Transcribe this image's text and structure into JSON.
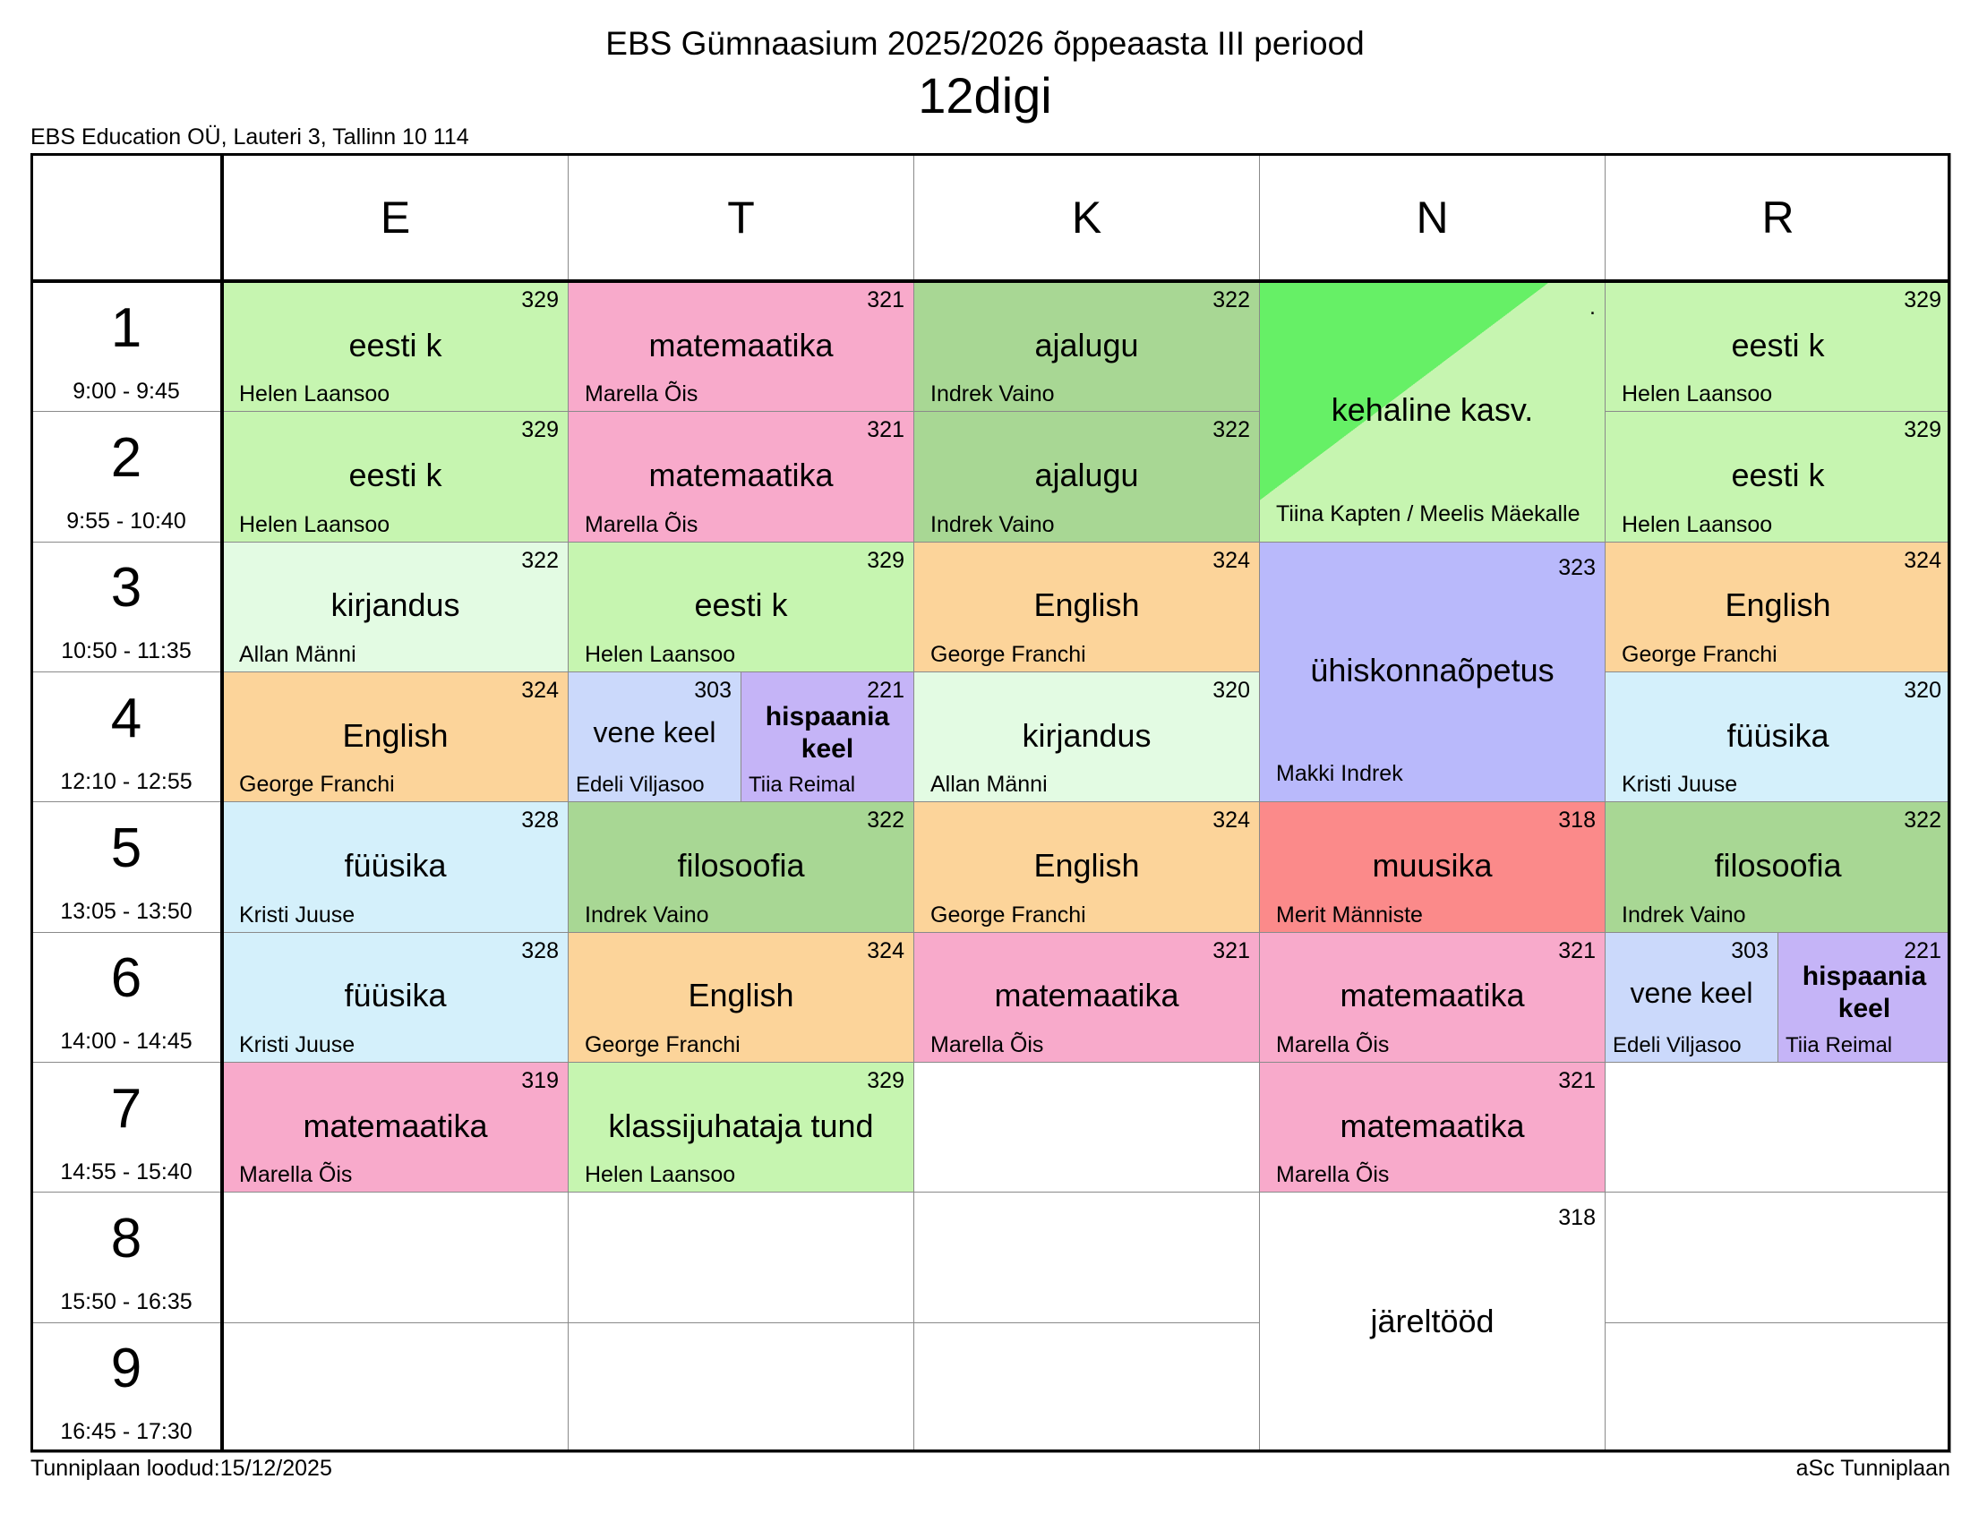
{
  "header": {
    "title": "EBS Gümnaasium 2025/2026 õppeaasta III periood",
    "class_name": "12digi",
    "address": "EBS Education OÜ, Lauteri 3, Tallinn 10 114"
  },
  "periods": [
    {
      "number": "1",
      "time": "9:00 - 9:45"
    },
    {
      "number": "2",
      "time": "9:55 - 10:40"
    },
    {
      "number": "3",
      "time": "10:50 - 11:35"
    },
    {
      "number": "4",
      "time": "12:10 - 12:55"
    },
    {
      "number": "5",
      "time": "13:05 - 13:50"
    },
    {
      "number": "6",
      "time": "14:00 - 14:45"
    },
    {
      "number": "7",
      "time": "14:55 - 15:40"
    },
    {
      "number": "8",
      "time": "15:50 - 16:35"
    },
    {
      "number": "9",
      "time": "16:45 - 17:30"
    }
  ],
  "days": [
    {
      "name": "E",
      "lessons": [
        {
          "periods": [
            1
          ],
          "groups": [
            {
              "subject": "eesti k",
              "room": "329",
              "teacher": "Helen Laansoo",
              "color": "#c6f5b0"
            }
          ]
        },
        {
          "periods": [
            2
          ],
          "groups": [
            {
              "subject": "eesti k",
              "room": "329",
              "teacher": "Helen Laansoo",
              "color": "#c6f5b0"
            }
          ]
        },
        {
          "periods": [
            3
          ],
          "groups": [
            {
              "subject": "kirjandus",
              "room": "322",
              "teacher": "Allan Männi",
              "color": "#e3fbe3"
            }
          ]
        },
        {
          "periods": [
            4
          ],
          "groups": [
            {
              "subject": "English",
              "room": "324",
              "teacher": "George Franchi",
              "color": "#fcd49a"
            }
          ]
        },
        {
          "periods": [
            5
          ],
          "groups": [
            {
              "subject": "füüsika",
              "room": "328",
              "teacher": "Kristi Juuse",
              "color": "#d4f0fb"
            }
          ]
        },
        {
          "periods": [
            6
          ],
          "groups": [
            {
              "subject": "füüsika",
              "room": "328",
              "teacher": "Kristi Juuse",
              "color": "#d4f0fb"
            }
          ]
        },
        {
          "periods": [
            7
          ],
          "groups": [
            {
              "subject": "matemaatika",
              "room": "319",
              "teacher": "Marella Õis",
              "color": "#f8aacb"
            }
          ]
        }
      ]
    },
    {
      "name": "T",
      "lessons": [
        {
          "periods": [
            1
          ],
          "groups": [
            {
              "subject": "matemaatika",
              "room": "321",
              "teacher": "Marella Õis",
              "color": "#f8aacb"
            }
          ]
        },
        {
          "periods": [
            2
          ],
          "groups": [
            {
              "subject": "matemaatika",
              "room": "321",
              "teacher": "Marella Õis",
              "color": "#f8aacb"
            }
          ]
        },
        {
          "periods": [
            3
          ],
          "groups": [
            {
              "subject": "eesti k",
              "room": "329",
              "teacher": "Helen Laansoo",
              "color": "#c6f5b0"
            }
          ]
        },
        {
          "periods": [
            4
          ],
          "groups": [
            {
              "subject": "vene keel",
              "room": "303",
              "teacher": "Edeli Viljasoo",
              "color": "#cbd9fb"
            },
            {
              "subject": "hispaania keel",
              "room": "221",
              "teacher": "Tiia Reimal",
              "color": "#c5b4f7"
            }
          ]
        },
        {
          "periods": [
            5
          ],
          "groups": [
            {
              "subject": "filosoofia",
              "room": "322",
              "teacher": "Indrek Vaino",
              "color": "#a8d794"
            }
          ]
        },
        {
          "periods": [
            6
          ],
          "groups": [
            {
              "subject": "English",
              "room": "324",
              "teacher": "George Franchi",
              "color": "#fcd49a"
            }
          ]
        },
        {
          "periods": [
            7
          ],
          "groups": [
            {
              "subject": "klassijuhataja tund",
              "room": "329",
              "teacher": "Helen Laansoo",
              "color": "#c6f5b0"
            }
          ]
        }
      ]
    },
    {
      "name": "K",
      "lessons": [
        {
          "periods": [
            1
          ],
          "groups": [
            {
              "subject": "ajalugu",
              "room": "322",
              "teacher": "Indrek Vaino",
              "color": "#a8d794"
            }
          ]
        },
        {
          "periods": [
            2
          ],
          "groups": [
            {
              "subject": "ajalugu",
              "room": "322",
              "teacher": "Indrek Vaino",
              "color": "#a8d794"
            }
          ]
        },
        {
          "periods": [
            3
          ],
          "groups": [
            {
              "subject": "English",
              "room": "324",
              "teacher": "George Franchi",
              "color": "#fcd49a"
            }
          ]
        },
        {
          "periods": [
            4
          ],
          "groups": [
            {
              "subject": "kirjandus",
              "room": "320",
              "teacher": "Allan Männi",
              "color": "#e3fbe3"
            }
          ]
        },
        {
          "periods": [
            5
          ],
          "groups": [
            {
              "subject": "English",
              "room": "324",
              "teacher": "George Franchi",
              "color": "#fcd49a"
            }
          ]
        },
        {
          "periods": [
            6
          ],
          "groups": [
            {
              "subject": "matemaatika",
              "room": "321",
              "teacher": "Marella Õis",
              "color": "#f8aacb"
            }
          ]
        }
      ]
    },
    {
      "name": "N",
      "lessons": [
        {
          "periods": [
            1,
            2
          ],
          "groups": [
            {
              "subject": "kehaline kasv.",
              "room": ".",
              "teacher": "Tiina Kapten / Meelis Mäekalle",
              "color": "#c6f5b0",
              "accent": "#66f066"
            }
          ]
        },
        {
          "periods": [
            3,
            4
          ],
          "groups": [
            {
              "subject": "ühiskonnaõpetus",
              "room": "323",
              "teacher": "Makki Indrek",
              "color": "#b9b9fb"
            }
          ]
        },
        {
          "periods": [
            5
          ],
          "groups": [
            {
              "subject": "muusika",
              "room": "318",
              "teacher": "Merit Männiste",
              "color": "#fb8a8a"
            }
          ]
        },
        {
          "periods": [
            6
          ],
          "groups": [
            {
              "subject": "matemaatika",
              "room": "321",
              "teacher": "Marella Õis",
              "color": "#f8aacb"
            }
          ]
        },
        {
          "periods": [
            7
          ],
          "groups": [
            {
              "subject": "matemaatika",
              "room": "321",
              "teacher": "Marella Õis",
              "color": "#f8aacb"
            }
          ]
        },
        {
          "periods": [
            8,
            9
          ],
          "groups": [
            {
              "subject": "järeltööd",
              "room": "318",
              "color": "#ffffff"
            }
          ]
        }
      ]
    },
    {
      "name": "R",
      "lessons": [
        {
          "periods": [
            1
          ],
          "groups": [
            {
              "subject": "eesti k",
              "room": "329",
              "teacher": "Helen Laansoo",
              "color": "#c6f5b0"
            }
          ]
        },
        {
          "periods": [
            2
          ],
          "groups": [
            {
              "subject": "eesti k",
              "room": "329",
              "teacher": "Helen Laansoo",
              "color": "#c6f5b0"
            }
          ]
        },
        {
          "periods": [
            3
          ],
          "groups": [
            {
              "subject": "English",
              "room": "324",
              "teacher": "George Franchi",
              "color": "#fcd49a"
            }
          ]
        },
        {
          "periods": [
            4
          ],
          "groups": [
            {
              "subject": "füüsika",
              "room": "320",
              "teacher": "Kristi Juuse",
              "color": "#d4f0fb"
            }
          ]
        },
        {
          "periods": [
            5
          ],
          "groups": [
            {
              "subject": "filosoofia",
              "room": "322",
              "teacher": "Indrek Vaino",
              "color": "#a8d794"
            }
          ]
        },
        {
          "periods": [
            6
          ],
          "groups": [
            {
              "subject": "vene keel",
              "room": "303",
              "teacher": "Edeli Viljasoo",
              "color": "#cbd9fb"
            },
            {
              "subject": "hispaania keel",
              "room": "221",
              "teacher": "Tiia Reimal",
              "color": "#c5b4f7"
            }
          ]
        }
      ]
    }
  ],
  "footer": {
    "created": "Tunniplaan loodud:15/12/2025",
    "software": "aSc Tunniplaan"
  }
}
